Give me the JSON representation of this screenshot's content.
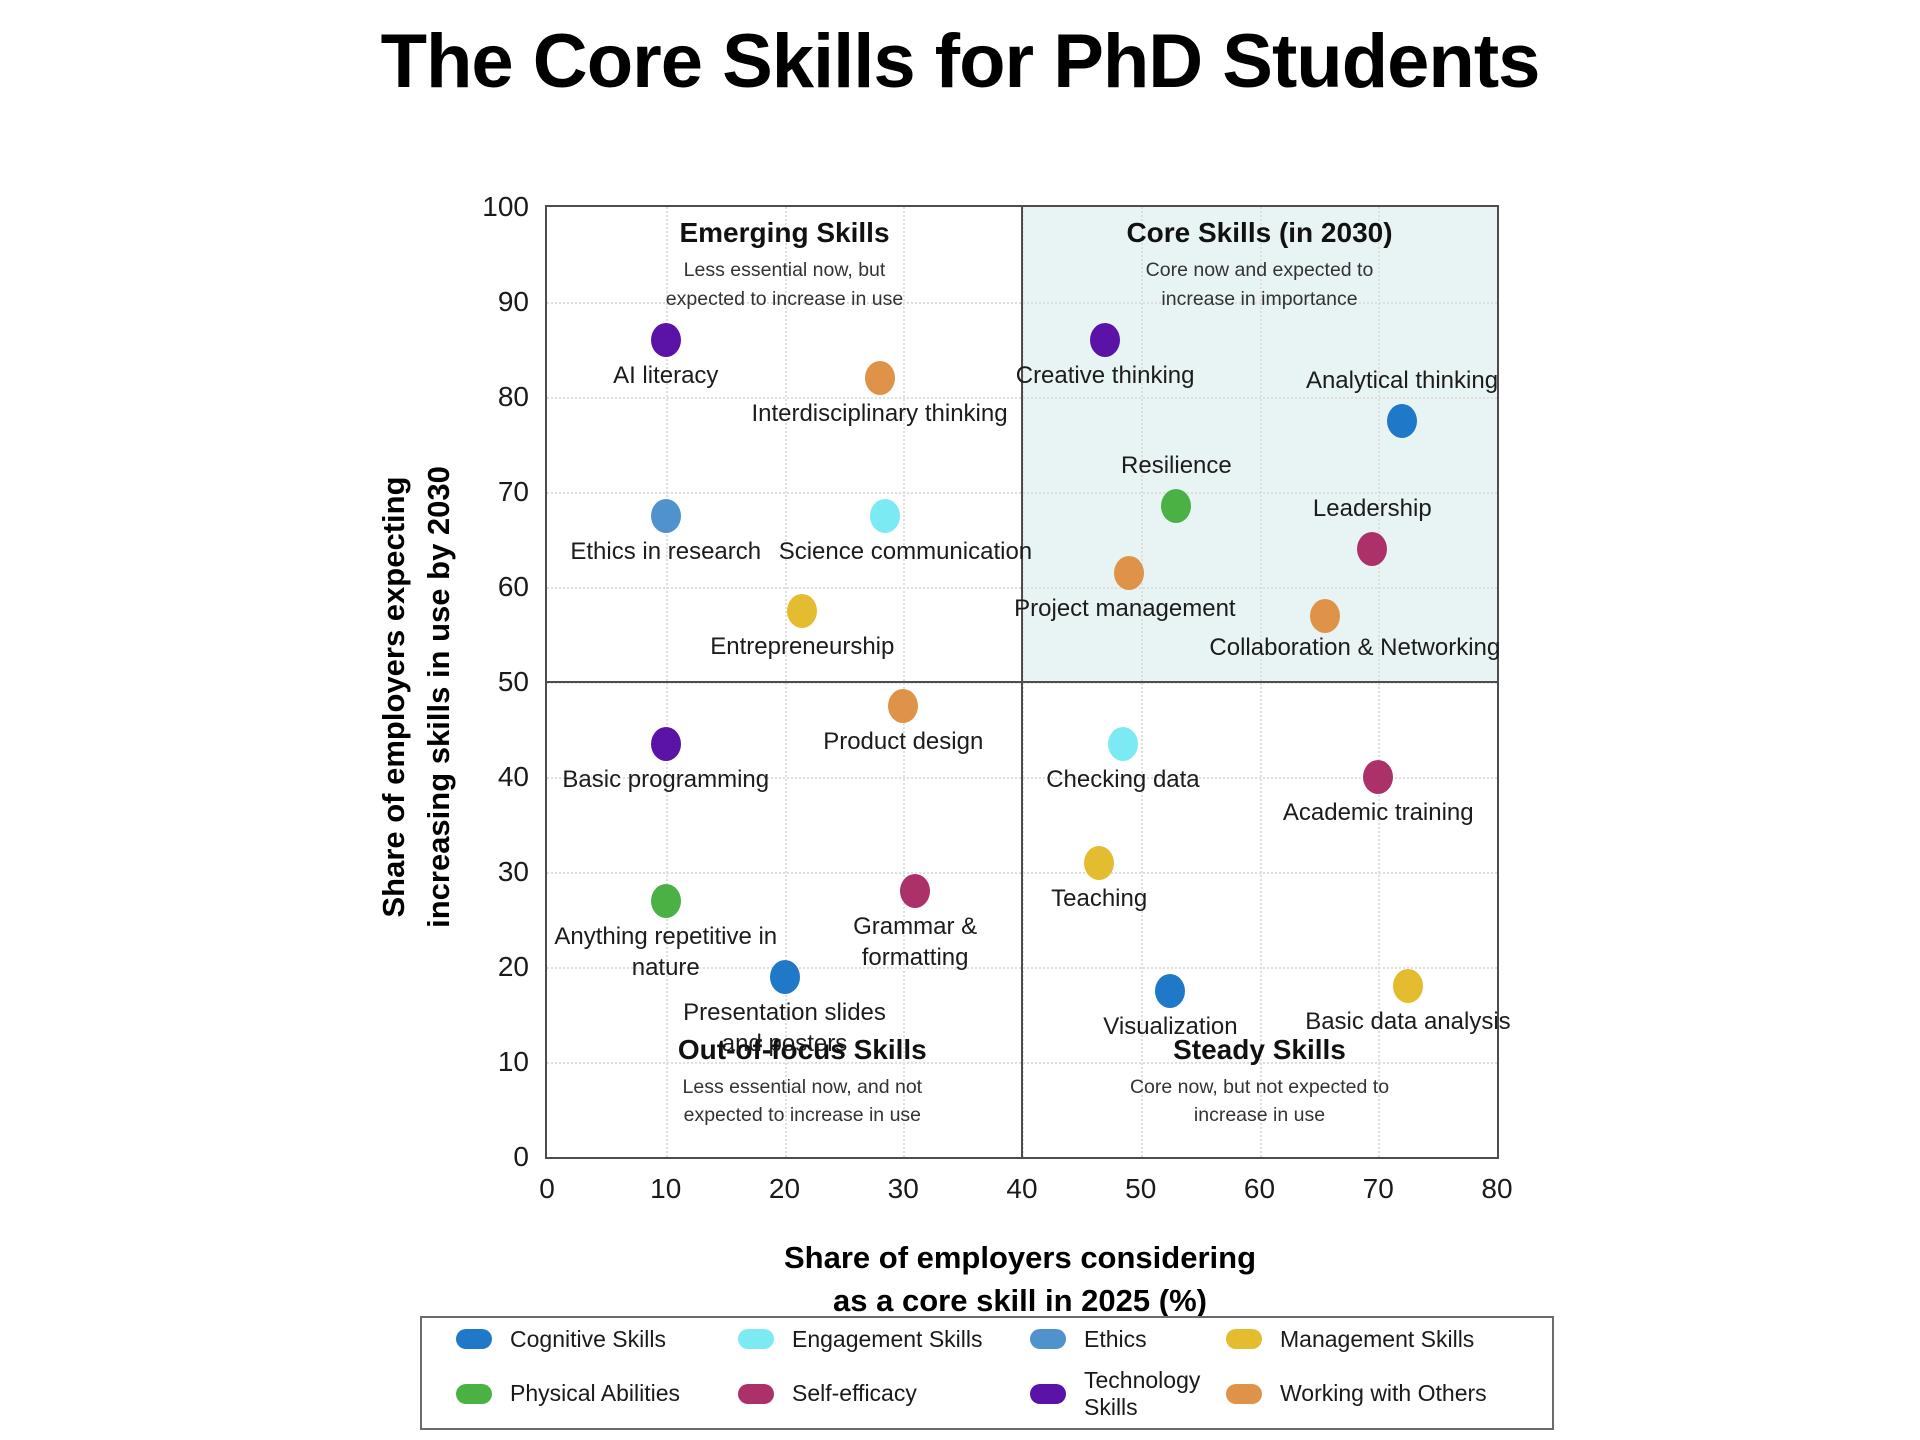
{
  "page": {
    "title": "The Core Skills for PhD Students"
  },
  "chart_data": {
    "type": "scatter",
    "title": "The Core Skills for PhD Students",
    "xlabel": "Share of employers considering\nas a core skill in 2025 (%)",
    "ylabel": "Share of employers expecting\nincreasing skills in use by 2030",
    "xlim": [
      0,
      80
    ],
    "ylim": [
      0,
      100
    ],
    "x_ticks": [
      0,
      10,
      20,
      30,
      40,
      50,
      60,
      70,
      80
    ],
    "y_ticks": [
      0,
      10,
      20,
      30,
      40,
      50,
      60,
      70,
      80,
      90,
      100
    ],
    "grid": "dotted",
    "legend_position": "bottom",
    "quadrants": {
      "divider_x": 40,
      "divider_y": 50,
      "shaded": {
        "x0": 40,
        "x1": 80,
        "y0": 50,
        "y1": 100,
        "color": "#e8f4f3"
      },
      "annotations": [
        {
          "id": "emerging",
          "title": "Emerging Skills",
          "subtitle": "Less essential now, but\nexpected to increase in use",
          "cx": 20,
          "top_pct": 1.1
        },
        {
          "id": "core",
          "title": "Core Skills (in 2030)",
          "subtitle": "Core now and expected to\nincrease in importance",
          "cx": 60,
          "top_pct": 1.1
        },
        {
          "id": "out-of-focus",
          "title": "Out-of-focus Skills",
          "subtitle": "Less essential now, and not\nexpected to increase in use",
          "cx": 21.5,
          "top_pct": 87
        },
        {
          "id": "steady",
          "title": "Steady Skills",
          "subtitle": "Core now, but not expected to\nincrease in use",
          "cx": 60,
          "top_pct": 87
        }
      ]
    },
    "categories": [
      {
        "name": "Cognitive Skills",
        "color": "#1f78c8"
      },
      {
        "name": "Engagement Skills",
        "color": "#7ceaf2"
      },
      {
        "name": "Ethics",
        "color": "#4f92cd"
      },
      {
        "name": "Management Skills",
        "color": "#e4bc30"
      },
      {
        "name": "Physical Abilities",
        "color": "#4cb144"
      },
      {
        "name": "Self-efficacy",
        "color": "#ad3169"
      },
      {
        "name": "Technology Skills",
        "color": "#5a13a6"
      },
      {
        "name": "Working with Others",
        "color": "#de9348"
      }
    ],
    "points": [
      {
        "label": "AI literacy",
        "x": 10,
        "y": 86,
        "category": "Technology Skills"
      },
      {
        "label": "Interdisciplinary thinking",
        "x": 28,
        "y": 82,
        "category": "Working with Others"
      },
      {
        "label": "Ethics in research",
        "x": 10,
        "y": 67.5,
        "category": "Ethics"
      },
      {
        "label": "Science communication",
        "x": 28.5,
        "y": 67.5,
        "category": "Engagement Skills",
        "dx": 20
      },
      {
        "label": "Entrepreneurship",
        "x": 21.5,
        "y": 57.5,
        "category": "Management Skills"
      },
      {
        "label": "Creative thinking",
        "x": 47,
        "y": 86,
        "category": "Technology Skills"
      },
      {
        "label": "Analytical thinking",
        "x": 72,
        "y": 77.5,
        "category": "Cognitive Skills",
        "dy": -56
      },
      {
        "label": "Resilience",
        "x": 53,
        "y": 68.5,
        "category": "Physical Abilities",
        "dy": -56
      },
      {
        "label": "Leadership",
        "x": 69.5,
        "y": 64,
        "category": "Self-efficacy",
        "dy": -56
      },
      {
        "label": "Project management",
        "x": 49,
        "y": 61.5,
        "category": "Working with Others",
        "dx": -4
      },
      {
        "label": "Collaboration & Networking",
        "x": 65.5,
        "y": 57,
        "category": "Working with Others",
        "dx": 30,
        "dy": 16
      },
      {
        "label": "Product design",
        "x": 30,
        "y": 47.5,
        "category": "Working with Others"
      },
      {
        "label": "Basic programming",
        "x": 10,
        "y": 43.5,
        "category": "Technology Skills"
      },
      {
        "label": "Checking data",
        "x": 48.5,
        "y": 43.5,
        "category": "Engagement Skills"
      },
      {
        "label": "Academic training",
        "x": 70,
        "y": 40,
        "category": "Self-efficacy"
      },
      {
        "label": "Teaching",
        "x": 46.5,
        "y": 31,
        "category": "Management Skills"
      },
      {
        "label": "Anything repetitive in\nnature",
        "x": 10,
        "y": 27,
        "category": "Physical Abilities"
      },
      {
        "label": "Grammar &\nformatting",
        "x": 31,
        "y": 28,
        "category": "Self-efficacy"
      },
      {
        "label": "Presentation slides\nand posters",
        "x": 20,
        "y": 19,
        "category": "Cognitive Skills"
      },
      {
        "label": "Visualization",
        "x": 52.5,
        "y": 17.5,
        "category": "Cognitive Skills"
      },
      {
        "label": "Basic data analysis",
        "x": 72.5,
        "y": 18,
        "category": "Management Skills"
      }
    ]
  }
}
